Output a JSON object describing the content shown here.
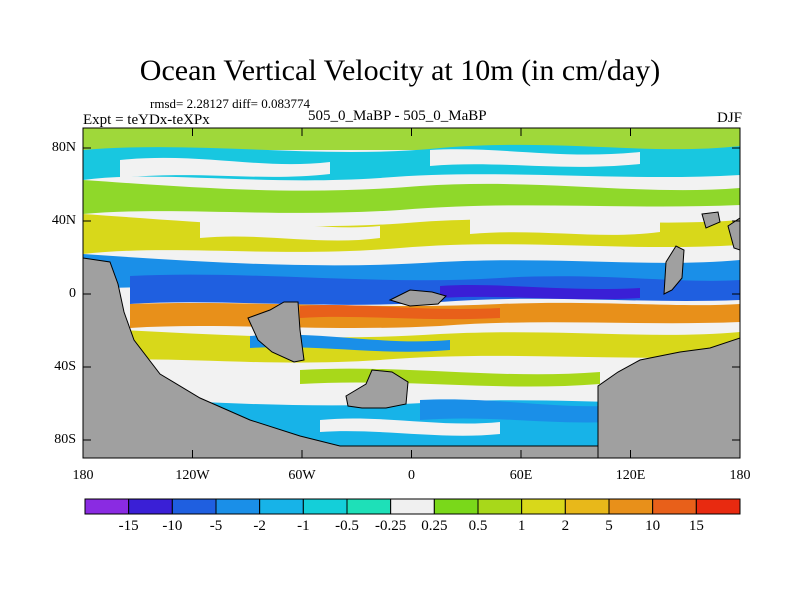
{
  "title": "Ocean Vertical Velocity at 10m (in cm/day)",
  "stats": "rmsd= 2.28127  diff= 0.083774",
  "experiment_label": "Expt = teYDx-teXPx",
  "center_label": "505_0_MaBP - 505_0_MaBP",
  "season": "DJF",
  "y_ticks": [
    "80N",
    "40N",
    "0",
    "40S",
    "80S"
  ],
  "x_ticks": [
    "180",
    "120W",
    "60W",
    "0",
    "60E",
    "120E",
    "180"
  ],
  "colorbar": {
    "labels": [
      "-15",
      "-10",
      "-5",
      "-2",
      "-1",
      "-0.5",
      "-0.25",
      "0.25",
      "0.5",
      "1",
      "2",
      "5",
      "10",
      "15"
    ],
    "colors": [
      "#8a2be2",
      "#3a1fd6",
      "#1f5fe0",
      "#1a8fe8",
      "#17b3e8",
      "#14cfd9",
      "#1ee0b8",
      "#f0f0f0",
      "#7ad81a",
      "#a8d81a",
      "#d8d81a",
      "#e8b81a",
      "#e8901a",
      "#e8601a",
      "#e82a10"
    ],
    "land_color": "#a0a0a0"
  }
}
